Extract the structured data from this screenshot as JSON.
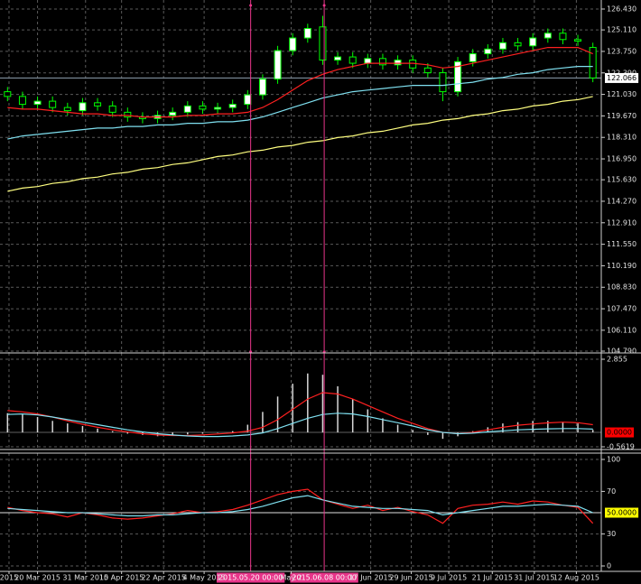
{
  "chart_data": [
    {
      "type": "candlestick",
      "xlim": [
        -0.5,
        39.5
      ],
      "xticks": [
        {
          "value": 0.1,
          "label": "2015"
        },
        {
          "value": 2.0,
          "label": "20 Mar 2015"
        },
        {
          "value": 5.2,
          "label": "31 Mar 2015"
        },
        {
          "value": 7.6,
          "label": "10 Apr 2015"
        },
        {
          "value": 10.4,
          "label": "22 Apr 2015"
        },
        {
          "value": 13.1,
          "label": "4 May 2015"
        },
        {
          "value": 18.9,
          "label": "May 2"
        },
        {
          "value": 24.2,
          "label": "17 Jun 2015"
        },
        {
          "value": 26.9,
          "label": "29 Jun 2015"
        },
        {
          "value": 29.4,
          "label": "9 Jul 2015"
        },
        {
          "value": 32.3,
          "label": "21 Jul 2015"
        },
        {
          "value": 35.1,
          "label": "31 Jul 2015"
        },
        {
          "value": 37.9,
          "label": "12 Aug 2015"
        }
      ],
      "vlines": [
        {
          "value": 16.2,
          "label": "2015.05.20 00:00"
        },
        {
          "value": 21.1,
          "label": "2015.06.08 00:00"
        }
      ],
      "vline_color": "#e8358a",
      "open": [
        121.2,
        120.9,
        120.4,
        120.6,
        120.2,
        120.0,
        120.5,
        120.3,
        119.9,
        119.6,
        119.5,
        119.7,
        119.9,
        120.3,
        120.1,
        120.2,
        120.4,
        121.0,
        122.0,
        123.8,
        124.6,
        125.3,
        123.2,
        123.4,
        123.0,
        123.3,
        122.9,
        123.2,
        122.7,
        122.4,
        121.2,
        123.1,
        123.6,
        123.9,
        124.3,
        124.1,
        124.6,
        124.9,
        124.5,
        124.0
      ],
      "high": [
        121.5,
        121.2,
        120.9,
        120.9,
        120.5,
        120.8,
        120.8,
        120.6,
        120.2,
        119.9,
        120.0,
        120.2,
        120.6,
        120.6,
        120.5,
        120.7,
        121.3,
        122.3,
        124.1,
        124.9,
        125.5,
        126.0,
        123.7,
        123.7,
        123.6,
        123.6,
        123.5,
        123.5,
        123.0,
        122.7,
        123.4,
        123.9,
        124.2,
        124.6,
        124.6,
        124.9,
        125.2,
        125.2,
        124.8,
        124.3
      ],
      "low": [
        120.6,
        120.1,
        120.1,
        119.9,
        119.7,
        119.7,
        120.0,
        119.6,
        119.3,
        119.2,
        119.2,
        119.4,
        119.6,
        119.8,
        119.8,
        119.9,
        120.1,
        120.7,
        121.7,
        123.5,
        124.3,
        122.9,
        122.9,
        122.7,
        122.7,
        122.6,
        122.6,
        122.4,
        122.1,
        120.6,
        120.9,
        122.8,
        123.3,
        123.6,
        123.8,
        123.8,
        124.3,
        124.2,
        124.1,
        121.8
      ],
      "close": [
        120.9,
        120.4,
        120.6,
        120.2,
        120.0,
        120.5,
        120.3,
        119.9,
        119.6,
        119.5,
        119.7,
        119.9,
        120.3,
        120.1,
        120.2,
        120.4,
        121.0,
        122.0,
        123.8,
        124.6,
        125.2,
        123.2,
        123.4,
        123.0,
        123.3,
        122.9,
        123.2,
        122.7,
        122.4,
        121.2,
        123.1,
        123.6,
        123.9,
        124.3,
        124.1,
        124.6,
        124.9,
        124.5,
        124.4,
        122.07
      ],
      "candle_color": "#00ff00",
      "up_fill": "#ffffff",
      "down_fill": "#000000",
      "series": [
        {
          "color": "#ff2020",
          "values": [
            120.2,
            120.1,
            120.1,
            120.0,
            119.9,
            119.8,
            119.8,
            119.7,
            119.7,
            119.6,
            119.6,
            119.6,
            119.7,
            119.7,
            119.8,
            119.8,
            119.9,
            120.2,
            120.7,
            121.3,
            121.9,
            122.3,
            122.6,
            122.8,
            123.0,
            123.0,
            123.0,
            123.0,
            122.9,
            122.7,
            122.8,
            123.0,
            123.2,
            123.4,
            123.6,
            123.8,
            124.0,
            124.0,
            124.0,
            123.6
          ]
        },
        {
          "color": "#7fe0f0",
          "values": [
            118.2,
            118.4,
            118.5,
            118.6,
            118.7,
            118.8,
            118.9,
            118.9,
            119.0,
            119.0,
            119.1,
            119.1,
            119.2,
            119.2,
            119.3,
            119.3,
            119.4,
            119.6,
            119.9,
            120.2,
            120.5,
            120.8,
            121.0,
            121.2,
            121.3,
            121.4,
            121.5,
            121.6,
            121.6,
            121.6,
            121.7,
            121.8,
            122.0,
            122.1,
            122.3,
            122.4,
            122.6,
            122.7,
            122.8,
            122.8
          ]
        },
        {
          "color": "#ffff80",
          "values": [
            114.9,
            115.1,
            115.2,
            115.4,
            115.5,
            115.7,
            115.8,
            116.0,
            116.1,
            116.3,
            116.4,
            116.6,
            116.7,
            116.9,
            117.1,
            117.2,
            117.4,
            117.5,
            117.7,
            117.8,
            118.0,
            118.1,
            118.3,
            118.4,
            118.6,
            118.7,
            118.9,
            119.1,
            119.2,
            119.4,
            119.5,
            119.7,
            119.8,
            120.0,
            120.1,
            120.3,
            120.4,
            120.6,
            120.7,
            120.9
          ]
        }
      ],
      "ylim": [
        104.79,
        126.43
      ],
      "yticks": [
        {
          "value": 126.43,
          "label": "126.430"
        },
        {
          "value": 125.11,
          "label": "125.110"
        },
        {
          "value": 123.75,
          "label": "123.750"
        },
        {
          "value": 122.39,
          "label": "122.390"
        },
        {
          "value": 121.03,
          "label": "121.030"
        },
        {
          "value": 119.67,
          "label": "119.670"
        },
        {
          "value": 118.31,
          "label": "118.310"
        },
        {
          "value": 116.95,
          "label": "116.950"
        },
        {
          "value": 115.63,
          "label": "115.630"
        },
        {
          "value": 114.27,
          "label": "114.270"
        },
        {
          "value": 112.91,
          "label": "112.910"
        },
        {
          "value": 111.55,
          "label": "111.550"
        },
        {
          "value": 110.19,
          "label": "110.190"
        },
        {
          "value": 108.83,
          "label": "108.830"
        },
        {
          "value": 107.47,
          "label": "107.470"
        },
        {
          "value": 106.11,
          "label": "106.110"
        },
        {
          "value": 104.79,
          "label": "104.790"
        }
      ],
      "marked_level": {
        "value": 122.066,
        "label": "122.066",
        "color": "#ffffff",
        "line_color": "#8fa0b0"
      },
      "grid": true
    },
    {
      "type": "macd",
      "values": [
        0.75,
        0.7,
        0.6,
        0.45,
        0.35,
        0.25,
        0.15,
        0.05,
        -0.05,
        -0.1,
        -0.15,
        -0.12,
        -0.08,
        -0.05,
        0.0,
        0.05,
        0.3,
        0.8,
        1.4,
        1.9,
        2.3,
        2.25,
        1.8,
        1.3,
        0.9,
        0.55,
        0.3,
        0.1,
        -0.1,
        -0.25,
        -0.15,
        0.05,
        0.2,
        0.35,
        0.4,
        0.45,
        0.45,
        0.4,
        0.35,
        0.1
      ],
      "color": "#d8d8d8",
      "series": [
        {
          "color": "#ff2020",
          "values": [
            0.85,
            0.8,
            0.72,
            0.6,
            0.45,
            0.32,
            0.2,
            0.1,
            0.02,
            -0.05,
            -0.1,
            -0.12,
            -0.12,
            -0.1,
            -0.06,
            -0.02,
            0.05,
            0.2,
            0.5,
            0.9,
            1.3,
            1.55,
            1.5,
            1.3,
            1.05,
            0.8,
            0.55,
            0.35,
            0.15,
            0.0,
            -0.05,
            0.0,
            0.1,
            0.2,
            0.28,
            0.33,
            0.37,
            0.4,
            0.38,
            0.3
          ]
        },
        {
          "color": "#7fe0f0",
          "values": [
            0.7,
            0.72,
            0.68,
            0.6,
            0.5,
            0.4,
            0.3,
            0.2,
            0.1,
            0.02,
            -0.05,
            -0.1,
            -0.14,
            -0.16,
            -0.16,
            -0.14,
            -0.1,
            -0.02,
            0.15,
            0.35,
            0.55,
            0.7,
            0.75,
            0.72,
            0.62,
            0.5,
            0.38,
            0.25,
            0.1,
            0.0,
            -0.05,
            -0.03,
            0.02,
            0.06,
            0.1,
            0.12,
            0.14,
            0.15,
            0.15,
            0.13
          ]
        }
      ],
      "ylim": [
        -0.5619,
        2.855
      ],
      "yticks": [
        2.855,
        -0.5619
      ],
      "marked_level": {
        "value": 0,
        "label": "0.0000",
        "color": "#ff0000",
        "line_color": "#606060"
      },
      "grid": true
    },
    {
      "type": "line",
      "series": [
        {
          "color": "#ff2020",
          "values": [
            55,
            52,
            50,
            49,
            46,
            50,
            48,
            45,
            44,
            45,
            47,
            49,
            52,
            50,
            51,
            53,
            57,
            62,
            67,
            70,
            72,
            62,
            58,
            54,
            57,
            52,
            55,
            51,
            48,
            40,
            54,
            57,
            58,
            60,
            58,
            61,
            60,
            57,
            55,
            40
          ]
        },
        {
          "color": "#7fe0f0",
          "values": [
            54,
            53,
            52,
            51,
            50,
            50,
            49,
            48,
            47,
            47,
            48,
            48,
            49,
            50,
            50,
            51,
            53,
            56,
            60,
            64,
            66,
            62,
            59,
            56,
            55,
            54,
            54,
            53,
            52,
            48,
            50,
            52,
            54,
            56,
            56,
            57,
            58,
            57,
            56,
            50
          ]
        }
      ],
      "ylim": [
        0,
        100
      ],
      "yticks": [
        100,
        70,
        30,
        0
      ],
      "marked_level": {
        "value": 50,
        "label": "50.0000",
        "color": "#ffff00",
        "line_color": "#e0e0e0"
      },
      "grid": true
    }
  ]
}
